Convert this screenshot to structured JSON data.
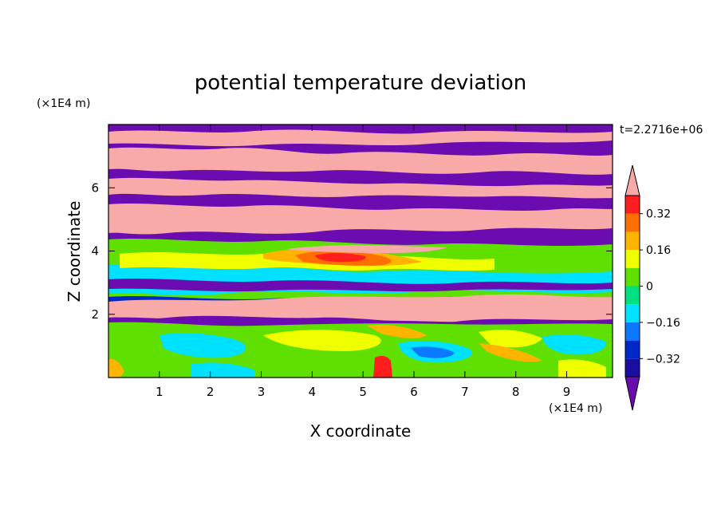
{
  "chart_data": {
    "type": "heatmap",
    "title": "potential temperature deviation",
    "xlabel": "X coordinate",
    "ylabel": "Z coordinate",
    "x_unit": "(×1E4 m)",
    "y_unit": "(×1E4 m)",
    "time_label": "t=2.2716e+06",
    "xlim": [
      0,
      9.9
    ],
    "ylim": [
      0,
      8
    ],
    "x_ticks": [
      1,
      2,
      3,
      4,
      5,
      6,
      7,
      8,
      9
    ],
    "y_ticks": [
      2,
      4,
      6
    ],
    "colorbar": {
      "levels": [
        -0.4,
        -0.32,
        -0.24,
        -0.16,
        -0.08,
        0,
        0.08,
        0.16,
        0.24,
        0.32,
        0.4
      ],
      "labels": [
        "0.32",
        "0.16",
        "0",
        "−0.16",
        "−0.32"
      ],
      "label_values": [
        0.32,
        0.16,
        0,
        -0.16,
        -0.32
      ],
      "colors": [
        "#1a0ea0",
        "#0028c8",
        "#0a78ff",
        "#00e0ff",
        "#00e080",
        "#60e000",
        "#f0ff00",
        "#ffb400",
        "#ff7000",
        "#ff1e1e"
      ],
      "under_color": "#6a0cb0",
      "over_color": "#f8aaa8"
    }
  }
}
